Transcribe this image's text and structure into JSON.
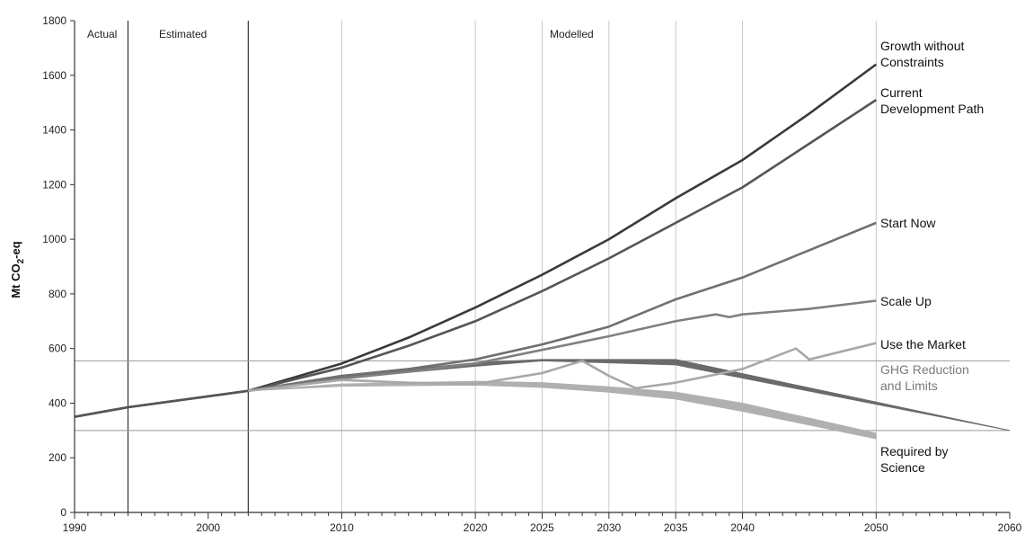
{
  "chart_data": {
    "type": "line",
    "title": "",
    "ylabel": "Mt CO",
    "ylabel_sub": "2",
    "ylabel_suffix": "-eq",
    "xlim": [
      1990,
      2060
    ],
    "ylim": [
      0,
      1800
    ],
    "y_ticks": [
      0,
      200,
      400,
      600,
      800,
      1000,
      1200,
      1400,
      1600,
      1800
    ],
    "x_ticks": [
      1990,
      2000,
      2010,
      2020,
      2025,
      2030,
      2035,
      2040,
      2050,
      2060
    ],
    "periods": [
      {
        "label": "Actual",
        "from": 1990,
        "to": 1994
      },
      {
        "label": "Estimated",
        "from": 1994,
        "to": 2003
      },
      {
        "label": "Modelled",
        "from": 2003,
        "to": 2060
      }
    ],
    "reference_lines": [
      {
        "name": "GHG Reduction and Limits",
        "y": 555
      },
      {
        "name": "Required by Science",
        "y": 300
      }
    ],
    "series": [
      {
        "name": "Growth without Constraints",
        "color": "#3a3a3a",
        "x": [
          1990,
          1994,
          2003,
          2010,
          2015,
          2020,
          2025,
          2030,
          2035,
          2040,
          2045,
          2050
        ],
        "y": [
          350,
          385,
          445,
          545,
          640,
          750,
          870,
          1000,
          1150,
          1290,
          1460,
          1640
        ]
      },
      {
        "name": "Current Development Path",
        "color": "#555555",
        "x": [
          1990,
          1994,
          2003,
          2010,
          2015,
          2020,
          2025,
          2030,
          2035,
          2040,
          2045,
          2050
        ],
        "y": [
          350,
          385,
          445,
          530,
          610,
          700,
          810,
          930,
          1060,
          1190,
          1350,
          1510
        ]
      },
      {
        "name": "Start Now",
        "color": "#707070",
        "x": [
          2003,
          2010,
          2015,
          2020,
          2025,
          2030,
          2035,
          2040,
          2045,
          2050
        ],
        "y": [
          445,
          500,
          525,
          560,
          615,
          680,
          780,
          860,
          960,
          1060
        ]
      },
      {
        "name": "Scale Up",
        "color": "#808080",
        "x": [
          2003,
          2010,
          2015,
          2020,
          2025,
          2030,
          2035,
          2038,
          2039,
          2040,
          2045,
          2050
        ],
        "y": [
          445,
          490,
          515,
          545,
          595,
          645,
          700,
          725,
          715,
          725,
          745,
          775
        ]
      },
      {
        "name": "Use the Market",
        "color": "#a8a8a8",
        "x": [
          2003,
          2010,
          2015,
          2020,
          2025,
          2028,
          2030,
          2032,
          2035,
          2040,
          2044,
          2045,
          2050
        ],
        "y": [
          445,
          485,
          475,
          470,
          510,
          555,
          500,
          455,
          475,
          525,
          600,
          560,
          620
        ]
      }
    ],
    "bands": [
      {
        "name": "Required by Science",
        "color": "#b0b0b0",
        "upper": {
          "x": [
            2003,
            2010,
            2020,
            2025,
            2030,
            2035,
            2040,
            2045,
            2050
          ],
          "y": [
            445,
            470,
            480,
            475,
            460,
            440,
            400,
            345,
            290
          ]
        },
        "lower": {
          "x": [
            2003,
            2010,
            2020,
            2025,
            2030,
            2035,
            2040,
            2045,
            2050
          ],
          "y": [
            445,
            462,
            466,
            458,
            440,
            415,
            370,
            320,
            270
          ]
        }
      },
      {
        "name": "GHG Reduction and Limits",
        "color": "#6a6a6a",
        "upper": {
          "x": [
            2003,
            2010,
            2020,
            2025,
            2035,
            2060
          ],
          "y": [
            445,
            500,
            548,
            560,
            560,
            300
          ]
        },
        "lower": {
          "x": [
            2003,
            2010,
            2020,
            2025,
            2035,
            2060
          ],
          "y": [
            445,
            490,
            535,
            555,
            540,
            300
          ]
        }
      }
    ],
    "annotations": [
      {
        "name": "Growth without Constraints",
        "lines": [
          "Growth without",
          "Constraints"
        ]
      },
      {
        "name": "Current Development Path",
        "lines": [
          "Current",
          "Development Path"
        ]
      },
      {
        "name": "Start Now",
        "lines": [
          "Start Now"
        ]
      },
      {
        "name": "Scale Up",
        "lines": [
          "Scale Up"
        ]
      },
      {
        "name": "Use the Market",
        "lines": [
          "Use the Market"
        ]
      },
      {
        "name": "GHG Reduction and Limits",
        "lines": [
          "GHG Reduction",
          "and Limits"
        ]
      },
      {
        "name": "Required by Science",
        "lines": [
          "Required by",
          "Science"
        ]
      }
    ],
    "grid": true,
    "legend": "none (inline labels at right)"
  }
}
